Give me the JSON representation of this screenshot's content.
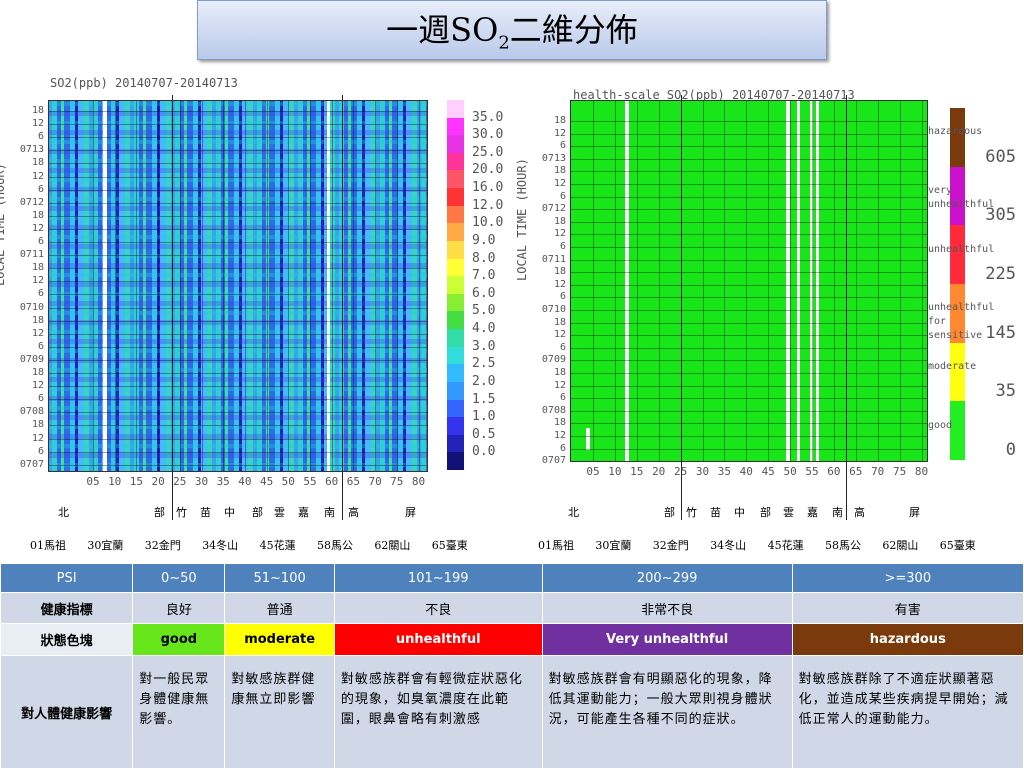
{
  "title": {
    "main": "一週SO",
    "sub": "2",
    "rest": "二維分佈"
  },
  "left": {
    "title": "SO2(ppb) 20140707-20140713",
    "ylabel": "LOCAL TIME (HOUR)",
    "yticks": [
      "18",
      "12",
      "6",
      "0713",
      "18",
      "12",
      "6",
      "0712",
      "18",
      "12",
      "6",
      "0711",
      "18",
      "12",
      "6",
      "0710",
      "18",
      "12",
      "6",
      "0709",
      "18",
      "12",
      "6",
      "0708",
      "18",
      "12",
      "6",
      "0707"
    ],
    "xticks": [
      "05",
      "10",
      "15",
      "20",
      "25",
      "30",
      "35",
      "40",
      "45",
      "50",
      "55",
      "60",
      "65",
      "70",
      "75",
      "80"
    ],
    "colorbar_colors": [
      "#ffd0ff",
      "#ff33ff",
      "#e633e6",
      "#ff3399",
      "#ff5566",
      "#ff3333",
      "#ff7744",
      "#ffaa44",
      "#ffdd44",
      "#ffff33",
      "#ccff33",
      "#88ee33",
      "#44dd44",
      "#33ddaa",
      "#33dddd",
      "#33bbff",
      "#3399ff",
      "#3366ff",
      "#3333ee",
      "#2222bb",
      "#111177"
    ],
    "colorbar_labels": [
      "35.0",
      "30.0",
      "25.0",
      "20.0",
      "16.0",
      "12.0",
      "10.0",
      "9.0",
      "8.0",
      "7.0",
      "6.0",
      "5.0",
      "4.0",
      "3.0",
      "2.5",
      "2.0",
      "1.5",
      "1.0",
      "0.5",
      "0.0"
    ],
    "regions": [
      "北",
      "部",
      "竹",
      "苗",
      "中",
      "部",
      "雲",
      "嘉",
      "南",
      "高",
      "屏"
    ],
    "stations": [
      "01馬祖",
      "30宜蘭",
      "32金門",
      "34冬山",
      "45花蓮",
      "58馬公",
      "62關山",
      "65臺東"
    ]
  },
  "right": {
    "title": "health-scale SO2(ppb) 20140707-20140713",
    "ylabel": "LOCAL TIME (HOUR)",
    "yticks": [
      "18",
      "12",
      "6",
      "0713",
      "18",
      "12",
      "6",
      "0712",
      "18",
      "12",
      "6",
      "0711",
      "18",
      "12",
      "6",
      "0710",
      "18",
      "12",
      "6",
      "0709",
      "18",
      "12",
      "6",
      "0708",
      "18",
      "12",
      "6",
      "0707"
    ],
    "xticks": [
      "05",
      "10",
      "15",
      "20",
      "25",
      "30",
      "35",
      "40",
      "45",
      "50",
      "55",
      "60",
      "65",
      "70",
      "75",
      "80"
    ],
    "levels": [
      {
        "name": "hazardous",
        "color": "#7b3a0c"
      },
      {
        "name": "very unhealthful",
        "color": "#cc11cc"
      },
      {
        "name": "unhealthful",
        "color": "#ff2a3a"
      },
      {
        "name": "unhealthful for sensitive",
        "color": "#ff8833"
      },
      {
        "name": "moderate",
        "color": "#ffff11"
      },
      {
        "name": "good",
        "color": "#22ee22"
      }
    ],
    "colorbar_values": [
      605,
      305,
      225,
      145,
      35,
      0
    ],
    "regions": [
      "北",
      "部",
      "竹",
      "苗",
      "中",
      "部",
      "雲",
      "嘉",
      "南",
      "高",
      "屏"
    ],
    "stations": [
      "01馬祖",
      "30宜蘭",
      "32金門",
      "34冬山",
      "45花蓮",
      "58馬公",
      "62關山",
      "65臺東"
    ]
  },
  "table": {
    "header": [
      "PSI",
      "0~50",
      "51~100",
      "101~199",
      "200~299",
      ">=300"
    ],
    "rows": [
      [
        "健康指標",
        "良好",
        "普通",
        "不良",
        "非常不良",
        "有害"
      ],
      [
        "狀態色塊",
        "good",
        "moderate",
        "unhealthful",
        "Very unhealthful",
        "hazardous"
      ],
      [
        "對人體健康影響",
        "對一般民眾身體健康無影響。",
        "對敏感族群健康無立即影響",
        "對敏感族群會有輕微症狀惡化的現象，如臭氧濃度在此範圍，眼鼻會略有刺激感",
        "對敏感族群會有明顯惡化的現象，降低其運動能力；一般大眾則視身體狀況，可能產生各種不同的症狀。",
        "對敏感族群除了不適症狀顯著惡化，並造成某些疾病提早開始；減低正常人的運動能力。"
      ]
    ],
    "status_colors": [
      "#66e61a",
      "#ffff00",
      "#ff0000",
      "#7030a0",
      "#7b3a0c"
    ]
  }
}
